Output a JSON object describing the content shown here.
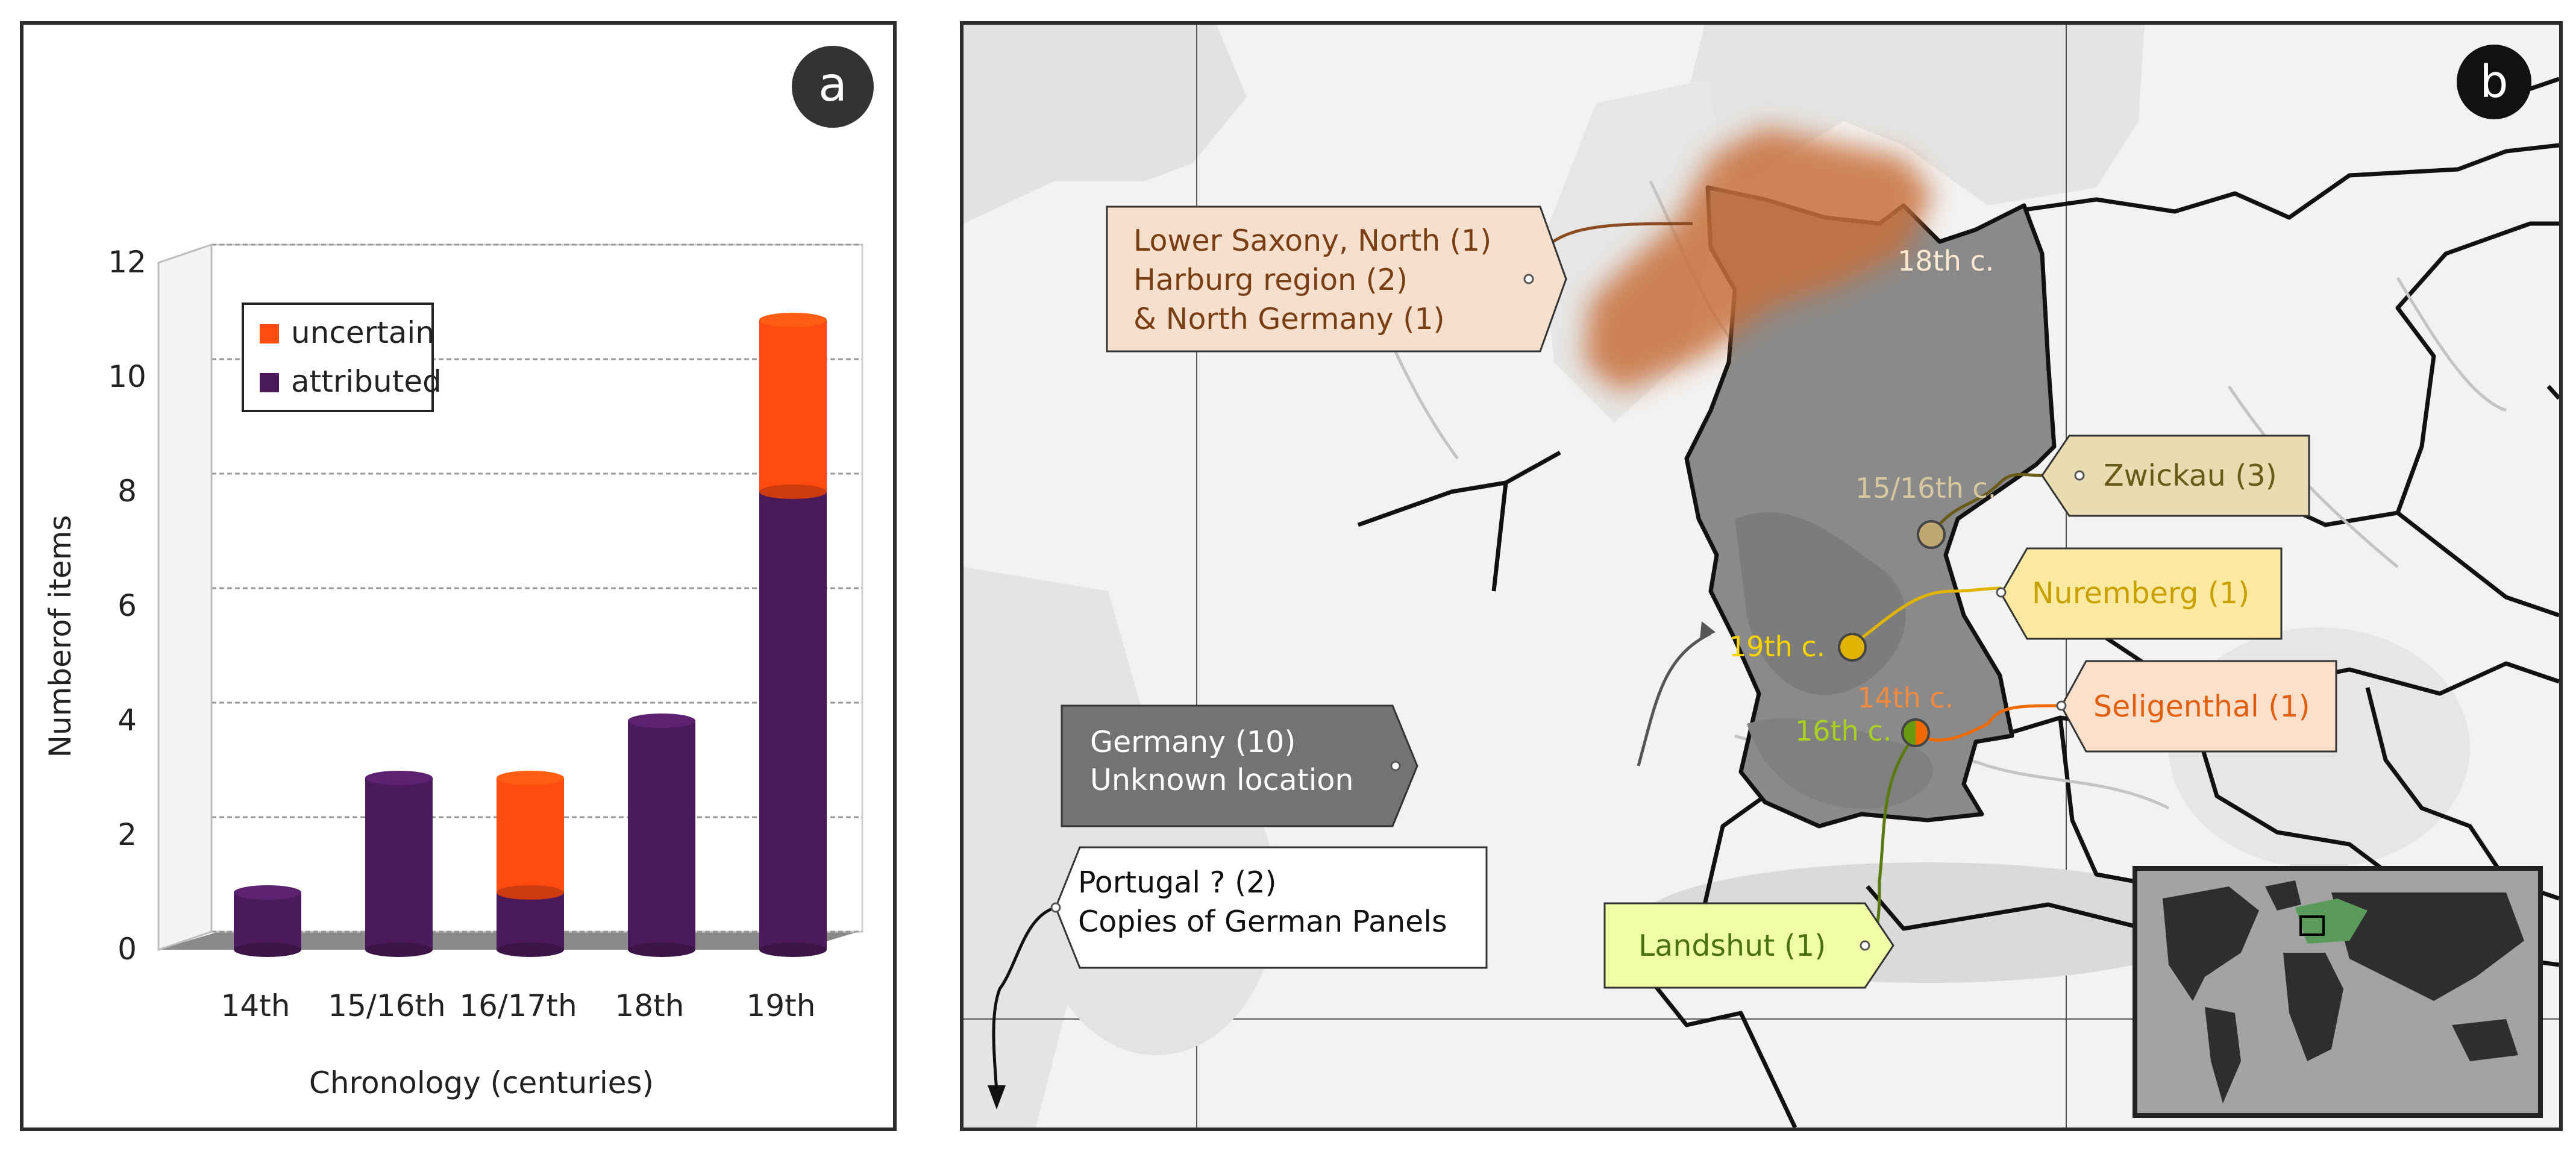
{
  "chart_data": {
    "type": "bar",
    "stacked": true,
    "categories": [
      "14th",
      "15/16th",
      "16/17th",
      "18th",
      "19th"
    ],
    "series": [
      {
        "name": "attributed",
        "color": "#4a1a5a",
        "values": [
          1,
          3,
          1,
          4,
          8
        ]
      },
      {
        "name": "uncertain",
        "color": "#ff4a10",
        "values": [
          0,
          0,
          2,
          0,
          3
        ]
      }
    ],
    "xlabel": "Chronology (centuries)",
    "ylabel": "Numberof items",
    "ylim": [
      0,
      12
    ],
    "yticks": [
      "0",
      "2",
      "4",
      "6",
      "8",
      "10",
      "12"
    ],
    "grid": true,
    "legend_position": "top-left"
  },
  "panel_a": {
    "badge": "a"
  },
  "panel_b": {
    "badge": "b",
    "tags": {
      "lower_saxony": [
        "Lower Saxony, North (1)",
        "Harburg region (2)",
        "& North Germany (1)"
      ],
      "zwickau": "Zwickau (3)",
      "nuremberg": "Nuremberg (1)",
      "seligenthal": "Seligenthal (1)",
      "germany": [
        "Germany (10)",
        "Unknown location"
      ],
      "portugal": [
        "Portugal ? (2)",
        "Copies of German Panels"
      ],
      "landshut": "Landshut (1)"
    },
    "century_labels": {
      "c18": "18th c.",
      "c1516": "15/16th c.",
      "c19": "19th c.",
      "c14": "14th c.",
      "c16": "16th c."
    },
    "colors": {
      "lower_saxony": "#c8703a",
      "zwickau": "#b0a060",
      "nuremberg": "#e0b400",
      "seligenthal": "#f06a00",
      "landshut": "#6a9a10",
      "germany_fill": "#8a8a8a"
    }
  }
}
